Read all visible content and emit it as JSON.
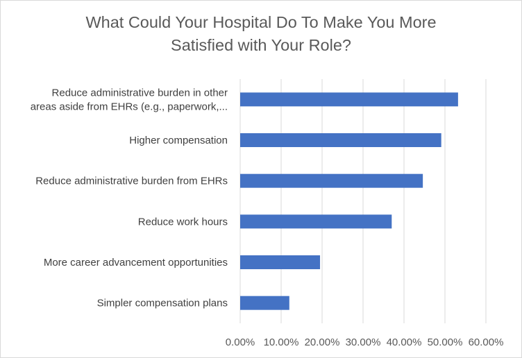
{
  "chart_data": {
    "type": "bar",
    "orientation": "horizontal",
    "title_lines": [
      "What Could Your Hospital Do To Make You More",
      "Satisfied with Your Role?"
    ],
    "categories": [
      [
        "Reduce administrative burden in other",
        "areas aside from EHRs (e.g., paperwork,..."
      ],
      [
        "Higher compensation"
      ],
      [
        "Reduce administrative burden from EHRs"
      ],
      [
        "Reduce work hours"
      ],
      [
        "More career advancement opportunities"
      ],
      [
        "Simpler compensation plans"
      ]
    ],
    "values": [
      53.2,
      49.1,
      44.6,
      37.0,
      19.5,
      12.0
    ],
    "xlim": [
      0,
      60
    ],
    "x_ticks": [
      "0.00%",
      "10.00%",
      "20.00%",
      "30.00%",
      "40.00%",
      "50.00%",
      "60.00%"
    ],
    "grid": true,
    "bar_color": "#4472c4"
  }
}
